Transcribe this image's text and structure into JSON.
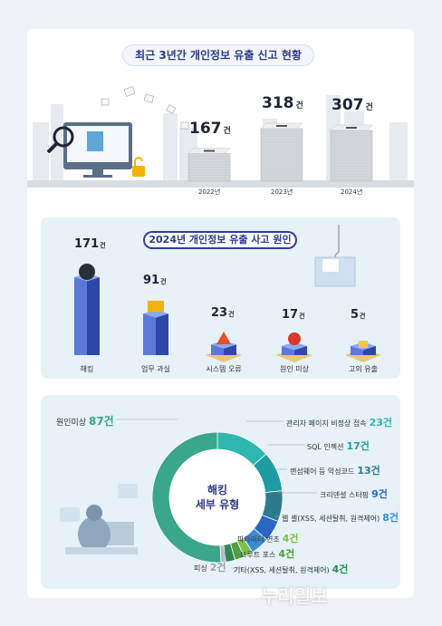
{
  "section1": {
    "title": "최근 3년간 개인정보 유출 신고 현황",
    "unit": "건"
  },
  "section2": {
    "title": "2024년 개인정보 유출 사고 원인"
  },
  "section3": {
    "center_label_line1": "해킹",
    "center_label_line2": "세부 유형"
  },
  "watermark": "누리일보",
  "colors": {
    "navy": "#2b3a8c",
    "bar_blue": "#3a52b8",
    "teal": "#2fb7b0",
    "green_dark": "#3f8a44"
  },
  "chart_data": [
    {
      "type": "bar",
      "title": "최근 3년간 개인정보 유출 신고 현황",
      "categories": [
        "2022년",
        "2023년",
        "2024년"
      ],
      "values": [
        167,
        318,
        307
      ],
      "unit": "건"
    },
    {
      "type": "bar",
      "title": "2024년 개인정보 유출 사고 원인",
      "categories": [
        "해킹",
        "업무 과실",
        "시스템 오류",
        "원인 미상",
        "고의 유출"
      ],
      "values": [
        171,
        91,
        23,
        17,
        5
      ],
      "unit": "건"
    },
    {
      "type": "pie",
      "title": "해킹 세부 유형",
      "categories": [
        "관리자 페이지 비정상 접속",
        "SQL 인젝션",
        "랜섬웨어 등 악성코드",
        "크리덴셜 스터핑",
        "웹 셸(XSS, 세션탈취, 원격제어)",
        "파라미터 변조",
        "브루트 포스",
        "기타(XSS, 세션탈취, 원격제어)",
        "피싱",
        "원인미상"
      ],
      "values": [
        23,
        17,
        13,
        9,
        8,
        4,
        4,
        4,
        2,
        87
      ],
      "unit": "건",
      "colors": [
        "#2fb7b0",
        "#1f9ba3",
        "#2c7a8a",
        "#2a66c4",
        "#3b8bd6",
        "#7cc04a",
        "#4f9e3b",
        "#2e8a55",
        "#b7bdc6",
        "#3aa68c"
      ]
    }
  ]
}
